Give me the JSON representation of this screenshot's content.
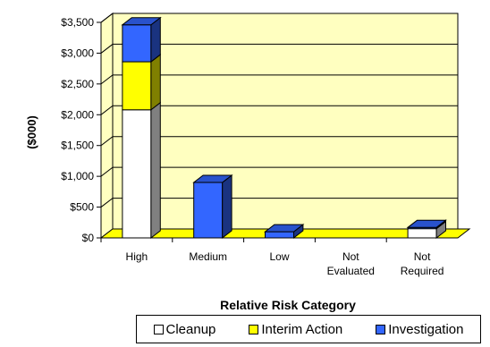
{
  "chart_data": {
    "type": "bar",
    "stacked": true,
    "three_d": true,
    "categories": [
      [
        "High"
      ],
      [
        "Medium"
      ],
      [
        "Low"
      ],
      [
        "Not",
        "Evaluated"
      ],
      [
        "Not",
        "Required"
      ]
    ],
    "series": [
      {
        "name": "Cleanup",
        "color": "#ffffff",
        "values": [
          2080,
          0,
          0,
          0,
          150
        ]
      },
      {
        "name": "Interim Action",
        "color": "#ffff00",
        "values": [
          780,
          0,
          0,
          0,
          0
        ]
      },
      {
        "name": "Investigation",
        "color": "#3366ff",
        "values": [
          600,
          900,
          100,
          0,
          20
        ]
      }
    ],
    "ylim": [
      0,
      3500
    ],
    "yticks": [
      "$0",
      "$500",
      "$1,000",
      "$1,500",
      "$2,000",
      "$2,500",
      "$3,000",
      "$3,500"
    ],
    "ylabel": "($000)",
    "xlabel": "Relative Risk Category",
    "floor_color": "#ffff00",
    "wall_color": "#ffffc0",
    "grid": true,
    "legend_position": "bottom"
  }
}
